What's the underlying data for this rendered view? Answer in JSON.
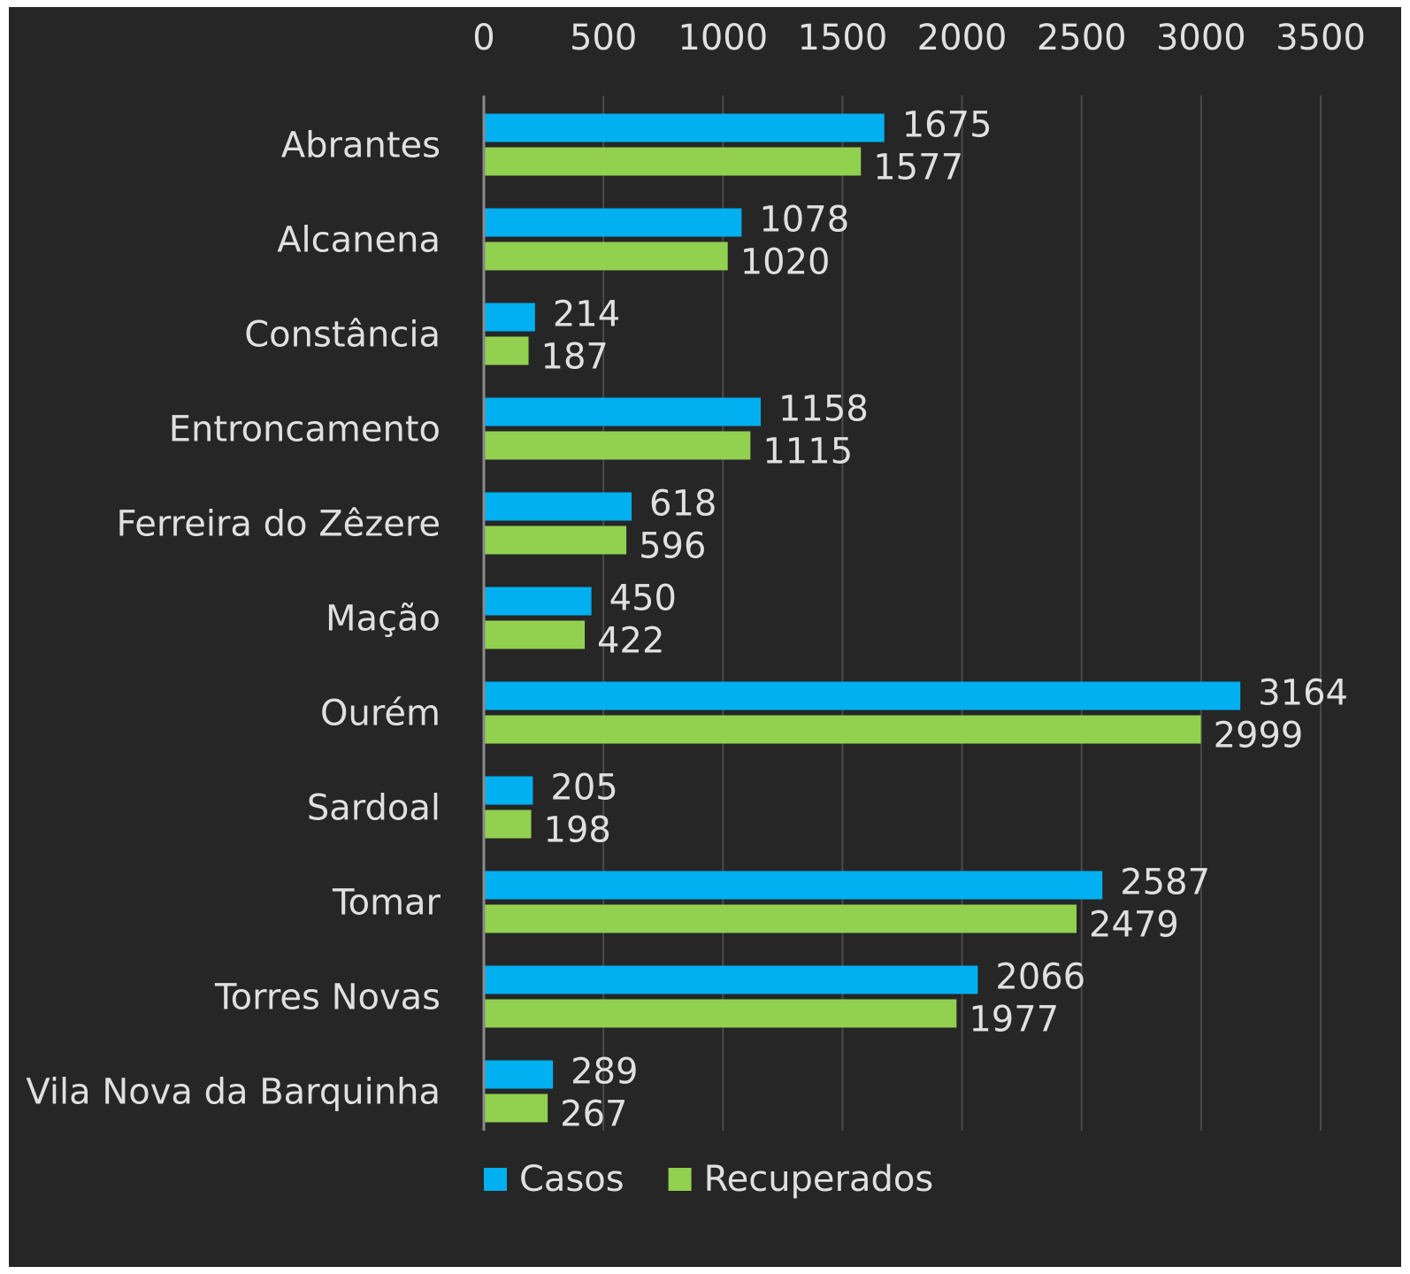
{
  "chart_data": {
    "type": "bar",
    "orientation": "horizontal",
    "categories": [
      "Abrantes",
      "Alcanena",
      "Constância",
      "Entroncamento",
      "Ferreira do Zêzere",
      "Mação",
      "Ourém",
      "Sardoal",
      "Tomar",
      "Torres Novas",
      "Vila Nova da Barquinha"
    ],
    "series": [
      {
        "name": "Casos",
        "color": "#00b0f0",
        "values": [
          1675,
          1078,
          214,
          1158,
          618,
          450,
          3164,
          205,
          2587,
          2066,
          289
        ]
      },
      {
        "name": "Recuperados",
        "color": "#92d050",
        "values": [
          1577,
          1020,
          187,
          1115,
          596,
          422,
          2999,
          198,
          2479,
          1977,
          267
        ]
      }
    ],
    "xlim": [
      0,
      3500
    ],
    "xticks": [
      "0",
      "500",
      "1000",
      "1500",
      "2000",
      "2500",
      "3000",
      "3500"
    ],
    "tick_position": "top",
    "grid": true,
    "data_labels": true,
    "legend": "bottom",
    "background": "#262626",
    "text_color": "#e0e0e0",
    "title": "",
    "xlabel": "",
    "ylabel": ""
  }
}
